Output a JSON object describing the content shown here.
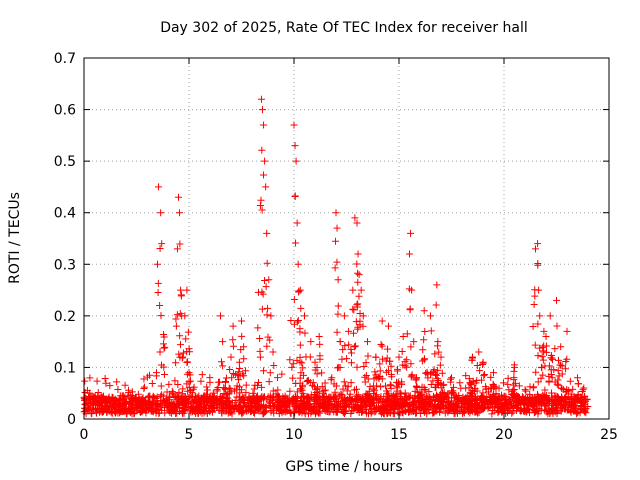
{
  "chart_data": {
    "type": "scatter",
    "title": "Day 302 of 2025, Rate Of TEC Index for receiver hall",
    "xlabel": "GPS time / hours",
    "ylabel": "ROTI / TECUs",
    "xlim": [
      0,
      25
    ],
    "ylim": [
      0,
      0.7
    ],
    "x_ticks": [
      "0",
      "5",
      "10",
      "15",
      "20",
      "25"
    ],
    "y_ticks": [
      "0",
      "0.1",
      "0.2",
      "0.3",
      "0.4",
      "0.5",
      "0.6",
      "0.7"
    ],
    "grid": true,
    "legend": "none",
    "marker": "+",
    "color": "#ff0000",
    "series": [
      {
        "name": "",
        "x": [
          3.45,
          3.5,
          3.55,
          3.6,
          3.62,
          3.65,
          3.7,
          4.4,
          4.45,
          4.5,
          4.55,
          4.6,
          4.65,
          4.7,
          4.8,
          4.9,
          5.0,
          6.5,
          6.6,
          7.0,
          7.1,
          7.4,
          7.5,
          7.6,
          8.4,
          8.45,
          8.5,
          8.55,
          8.6,
          8.65,
          8.7,
          8.8,
          8.9,
          9.0,
          9.9,
          10.0,
          10.05,
          10.1,
          10.15,
          10.2,
          10.3,
          10.5,
          10.8,
          11.0,
          11.2,
          11.8,
          12.0,
          12.05,
          12.1,
          12.2,
          12.4,
          12.6,
          12.8,
          12.9,
          13.0,
          13.05,
          13.1,
          13.2,
          13.3,
          13.5,
          13.9,
          14.2,
          14.5,
          15.0,
          15.2,
          15.5,
          15.55,
          15.6,
          15.7,
          16.2,
          16.5,
          16.8,
          16.85,
          17.0,
          17.5,
          18.5,
          18.8,
          19.0,
          19.5,
          20.5,
          21.5,
          21.6,
          21.65,
          21.7,
          21.9,
          22.0,
          22.2,
          22.5,
          22.7,
          23.0,
          23.5,
          23.8
        ],
        "y": [
          0.09,
          0.3,
          0.45,
          0.22,
          0.13,
          0.4,
          0.34,
          0.18,
          0.33,
          0.43,
          0.4,
          0.25,
          0.2,
          0.12,
          0.2,
          0.25,
          0.09,
          0.2,
          0.15,
          0.12,
          0.18,
          0.11,
          0.19,
          0.14,
          0.12,
          0.62,
          0.6,
          0.57,
          0.5,
          0.45,
          0.36,
          0.27,
          0.2,
          0.13,
          0.1,
          0.57,
          0.53,
          0.5,
          0.38,
          0.3,
          0.25,
          0.2,
          0.15,
          0.11,
          0.16,
          0.08,
          0.4,
          0.37,
          0.27,
          0.15,
          0.2,
          0.17,
          0.25,
          0.39,
          0.38,
          0.32,
          0.28,
          0.25,
          0.2,
          0.15,
          0.12,
          0.19,
          0.18,
          0.12,
          0.16,
          0.32,
          0.36,
          0.25,
          0.15,
          0.21,
          0.2,
          0.26,
          0.15,
          0.12,
          0.08,
          0.12,
          0.13,
          0.11,
          0.09,
          0.1,
          0.33,
          0.34,
          0.25,
          0.2,
          0.17,
          0.16,
          0.2,
          0.23,
          0.14,
          0.17,
          0.08,
          0.06
        ]
      }
    ]
  }
}
